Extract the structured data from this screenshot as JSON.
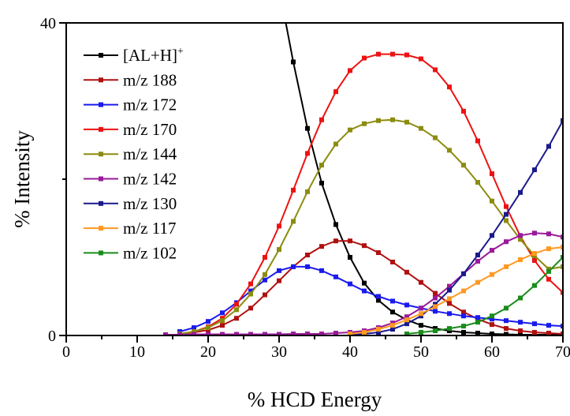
{
  "chart_data": {
    "type": "line",
    "xlabel": "% HCD Energy",
    "ylabel": "% Intensity",
    "xlim": [
      0,
      70
    ],
    "ylim": [
      0,
      40
    ],
    "xticks": [
      0,
      10,
      20,
      30,
      40,
      50,
      60,
      70
    ],
    "yticks": [
      0,
      40
    ],
    "yticks_minor": [
      20
    ],
    "grid": false,
    "legend_position": "top-left",
    "series": [
      {
        "name": "[AL+H]",
        "superscript": "+",
        "color": "#000000",
        "x": [
          30,
          32,
          34,
          36,
          38,
          40,
          42,
          44,
          46,
          48,
          50,
          52,
          54,
          56,
          58,
          60,
          62,
          64,
          66,
          68,
          70
        ],
        "y": [
          44.5,
          35,
          26.5,
          19.5,
          14.2,
          10,
          6.7,
          4.5,
          3,
          2,
          1.3,
          0.9,
          0.6,
          0.4,
          0.3,
          0.2,
          0.15,
          0.1,
          0.1,
          0.1,
          0.1
        ]
      },
      {
        "name": "m/z 188",
        "color": "#b01010",
        "x": [
          16,
          18,
          20,
          22,
          24,
          26,
          28,
          30,
          32,
          34,
          36,
          38,
          40,
          42,
          44,
          46,
          48,
          50,
          52,
          54,
          56,
          58,
          60,
          62,
          64,
          66,
          68,
          70
        ],
        "y": [
          0.2,
          0.4,
          0.7,
          1.3,
          2.2,
          3.5,
          5.2,
          7,
          8.8,
          10.3,
          11.4,
          12.1,
          12.1,
          11.5,
          10.6,
          9.4,
          8.1,
          6.8,
          5.4,
          4.1,
          3,
          2.1,
          1.4,
          0.9,
          0.6,
          0.4,
          0.3,
          0.2
        ]
      },
      {
        "name": "m/z 172",
        "color": "#1a1aee",
        "x": [
          16,
          18,
          20,
          22,
          24,
          26,
          28,
          30,
          32,
          34,
          36,
          38,
          40,
          42,
          44,
          46,
          48,
          50,
          52,
          54,
          56,
          58,
          60,
          62,
          64,
          66,
          68,
          70
        ],
        "y": [
          0.5,
          1,
          1.8,
          2.9,
          4.2,
          5.7,
          7.1,
          8.3,
          8.8,
          8.8,
          8.3,
          7.5,
          6.6,
          5.7,
          5,
          4.4,
          3.9,
          3.5,
          3.1,
          2.8,
          2.5,
          2.3,
          2.1,
          1.9,
          1.7,
          1.5,
          1.3,
          1.2
        ]
      },
      {
        "name": "m/z 170",
        "color": "#ee1111",
        "x": [
          16,
          18,
          20,
          22,
          24,
          26,
          28,
          30,
          32,
          34,
          36,
          38,
          40,
          42,
          44,
          46,
          48,
          50,
          52,
          54,
          56,
          58,
          60,
          62,
          64,
          66,
          68,
          70
        ],
        "y": [
          0.2,
          0.5,
          1.1,
          2.2,
          4,
          6.6,
          10,
          14,
          18.6,
          23.3,
          27.6,
          31.2,
          33.9,
          35.5,
          36,
          36,
          35.9,
          35.4,
          34,
          31.8,
          28.7,
          24.9,
          20.7,
          16.5,
          12.7,
          9.6,
          7.2,
          5.5
        ]
      },
      {
        "name": "m/z 144",
        "color": "#8c8c10",
        "x": [
          16,
          18,
          20,
          22,
          24,
          26,
          28,
          30,
          32,
          34,
          36,
          38,
          40,
          42,
          44,
          46,
          48,
          50,
          52,
          54,
          56,
          58,
          60,
          62,
          64,
          66,
          68,
          70
        ],
        "y": [
          0.2,
          0.5,
          1,
          1.9,
          3.3,
          5.3,
          7.8,
          11,
          14.6,
          18.4,
          21.8,
          24.5,
          26.3,
          27.1,
          27.5,
          27.6,
          27.3,
          26.5,
          25.3,
          23.7,
          21.8,
          19.6,
          17.2,
          14.7,
          12.3,
          10.2,
          8.5,
          8.8
        ]
      },
      {
        "name": "m/z 142",
        "color": "#9a1a9a",
        "x": [
          14,
          16,
          18,
          20,
          22,
          24,
          26,
          28,
          30,
          32,
          34,
          36,
          38,
          40,
          42,
          44,
          46,
          48,
          50,
          52,
          54,
          56,
          58,
          60,
          62,
          64,
          66,
          68,
          70
        ],
        "y": [
          0.1,
          0.1,
          0.15,
          0.15,
          0.15,
          0.15,
          0.15,
          0.15,
          0.15,
          0.2,
          0.2,
          0.2,
          0.3,
          0.4,
          0.6,
          1,
          1.6,
          2.4,
          3.5,
          4.8,
          6.3,
          7.9,
          9.5,
          10.9,
          12,
          12.8,
          13.1,
          13,
          12.6
        ]
      },
      {
        "name": "m/z 130",
        "color": "#1a1a8c",
        "x": [
          40,
          42,
          44,
          46,
          48,
          50,
          52,
          54,
          56,
          58,
          60,
          62,
          64,
          66,
          68,
          70
        ],
        "y": [
          0.1,
          0.2,
          0.4,
          0.8,
          1.5,
          2.5,
          4,
          5.8,
          7.9,
          10.3,
          12.8,
          15.5,
          18.3,
          21.2,
          24.2,
          27.5
        ]
      },
      {
        "name": "m/z 117",
        "color": "#ff9922",
        "x": [
          40,
          42,
          44,
          46,
          48,
          50,
          52,
          54,
          56,
          58,
          60,
          62,
          64,
          66,
          68,
          70
        ],
        "y": [
          0.2,
          0.4,
          0.8,
          1.3,
          2,
          2.8,
          3.7,
          4.7,
          5.7,
          6.8,
          7.8,
          8.8,
          9.7,
          10.5,
          11.1,
          11.3
        ]
      },
      {
        "name": "m/z 102",
        "color": "#1a8c1a",
        "x": [
          48,
          50,
          52,
          54,
          56,
          58,
          60,
          62,
          64,
          66,
          68,
          70
        ],
        "y": [
          0.2,
          0.4,
          0.6,
          0.9,
          1.2,
          1.7,
          2.5,
          3.5,
          4.8,
          6.4,
          8.2,
          10
        ]
      }
    ]
  }
}
